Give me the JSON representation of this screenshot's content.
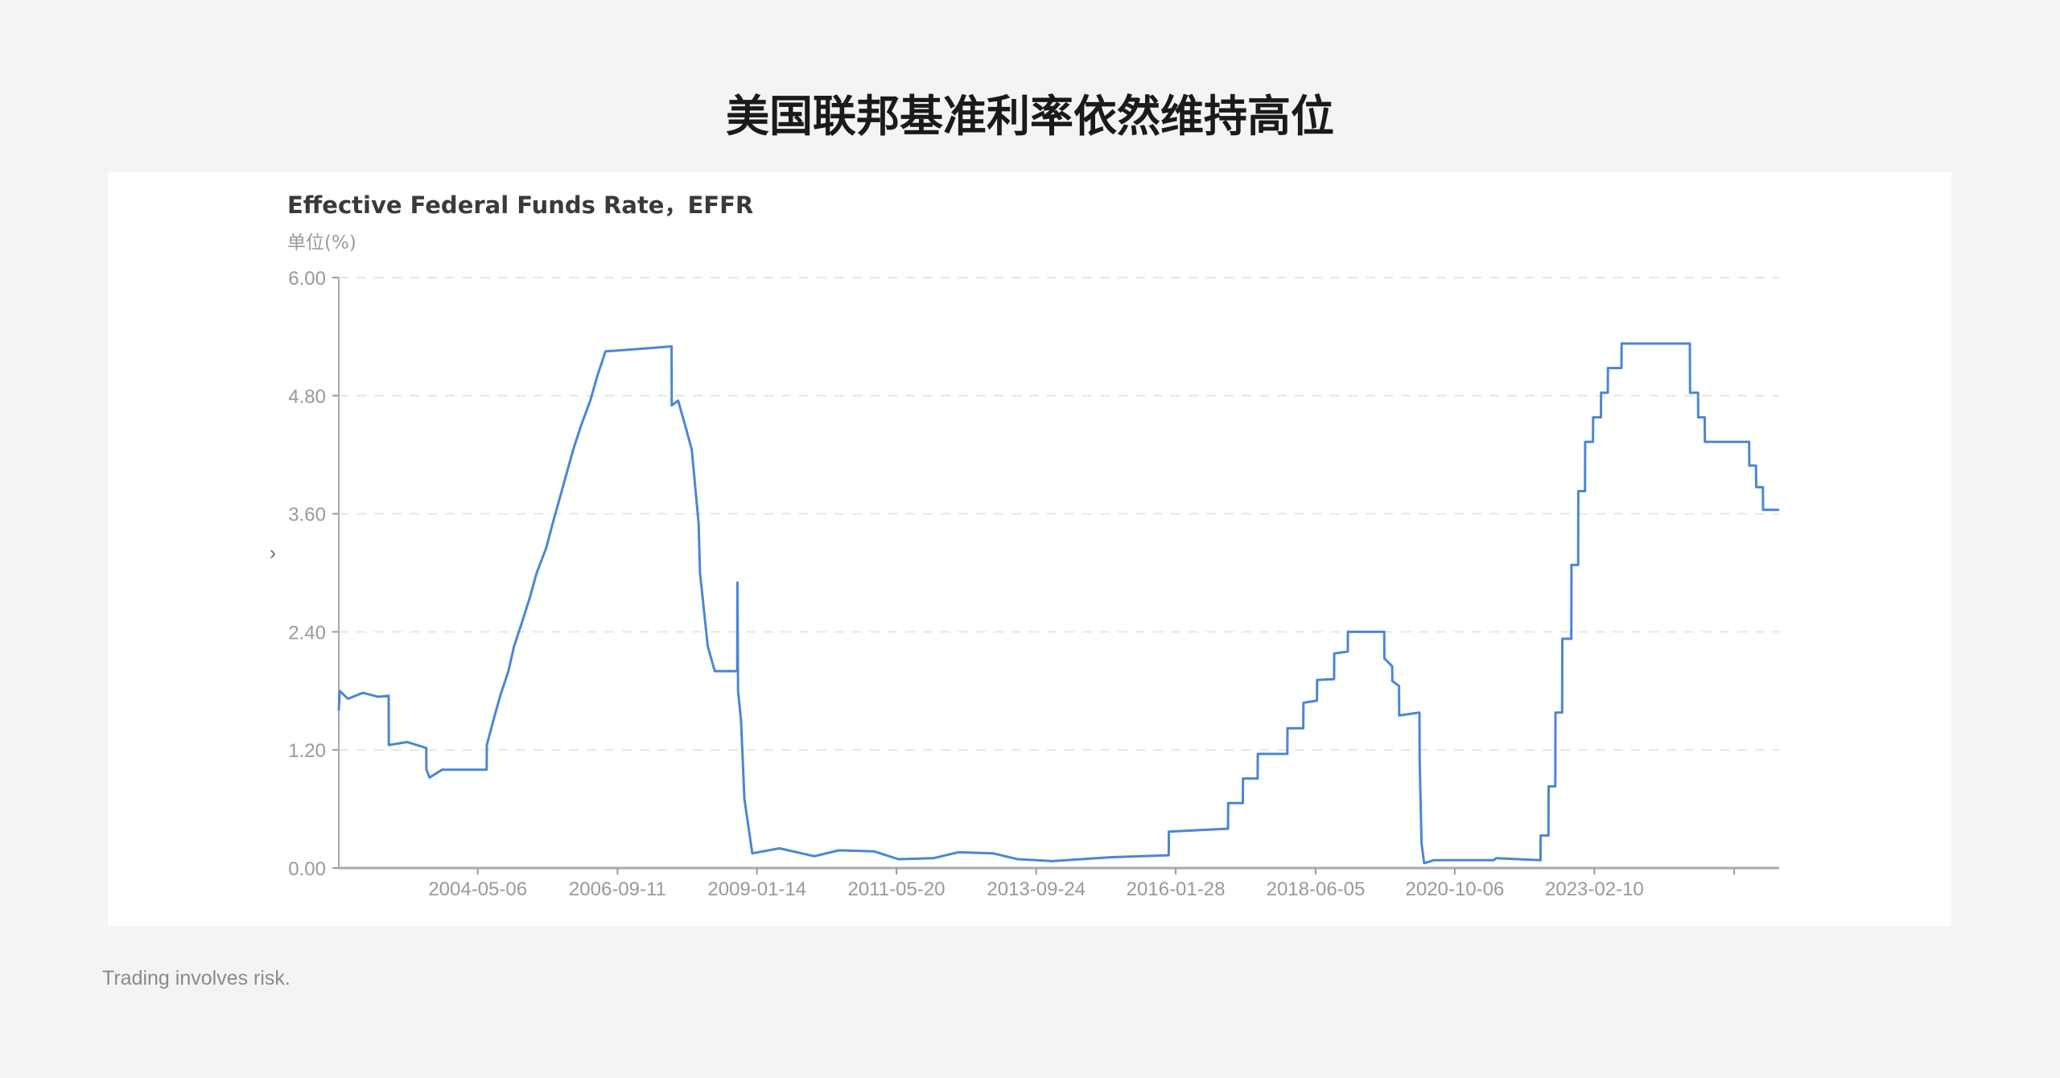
{
  "page": {
    "title": "美国联邦基准利率依然维持高位",
    "footer": "Trading involves risk."
  },
  "chart_data": {
    "type": "line",
    "title": "Effective Federal Funds Rate，EFFR",
    "ylabel": "单位(%)",
    "xlabel": "",
    "ylim": [
      0,
      6
    ],
    "xlim": [
      "2002-01-04",
      "2026-03-20"
    ],
    "yticks": [
      "0.00",
      "1.20",
      "2.40",
      "3.60",
      "4.80",
      "6.00"
    ],
    "xticks": [
      "2004-05-06",
      "2006-09-11",
      "2009-01-14",
      "2011-05-20",
      "2013-09-24",
      "2016-01-28",
      "2018-06-05",
      "2020-10-06",
      "2023-02-10"
    ],
    "grid": "horizontal dashed",
    "line_color": "#4a86d4",
    "series": [
      {
        "points": [
          [
            "2002-01-04",
            1.6
          ],
          [
            "2002-01-10",
            1.8
          ],
          [
            "2002-03-01",
            1.72
          ],
          [
            "2002-06-01",
            1.78
          ],
          [
            "2002-09-01",
            1.74
          ],
          [
            "2002-11-06",
            1.75
          ],
          [
            "2002-11-07",
            1.25
          ],
          [
            "2003-03-01",
            1.28
          ],
          [
            "2003-06-25",
            1.22
          ],
          [
            "2003-06-26",
            1.0
          ],
          [
            "2003-07-15",
            0.92
          ],
          [
            "2003-10-01",
            1.0
          ],
          [
            "2004-03-01",
            1.0
          ],
          [
            "2004-06-30",
            1.0
          ],
          [
            "2004-07-01",
            1.25
          ],
          [
            "2004-08-10",
            1.5
          ],
          [
            "2004-09-21",
            1.75
          ],
          [
            "2004-11-10",
            2.0
          ],
          [
            "2004-12-14",
            2.25
          ],
          [
            "2005-02-02",
            2.5
          ],
          [
            "2005-03-22",
            2.75
          ],
          [
            "2005-05-03",
            3.0
          ],
          [
            "2005-06-30",
            3.25
          ],
          [
            "2005-08-09",
            3.5
          ],
          [
            "2005-09-20",
            3.75
          ],
          [
            "2005-11-01",
            4.0
          ],
          [
            "2005-12-13",
            4.25
          ],
          [
            "2006-01-31",
            4.5
          ],
          [
            "2006-03-28",
            4.75
          ],
          [
            "2006-05-10",
            5.0
          ],
          [
            "2006-06-29",
            5.25
          ],
          [
            "2007-08-09",
            5.3
          ],
          [
            "2007-08-10",
            4.7
          ],
          [
            "2007-09-18",
            4.75
          ],
          [
            "2007-10-31",
            4.5
          ],
          [
            "2007-12-11",
            4.25
          ],
          [
            "2008-01-22",
            3.5
          ],
          [
            "2008-01-30",
            3.0
          ],
          [
            "2008-03-18",
            2.25
          ],
          [
            "2008-04-30",
            2.0
          ],
          [
            "2008-09-15",
            2.0
          ],
          [
            "2008-09-16",
            2.9
          ],
          [
            "2008-09-20",
            1.8
          ],
          [
            "2008-10-08",
            1.5
          ],
          [
            "2008-10-29",
            0.7
          ],
          [
            "2008-12-16",
            0.15
          ],
          [
            "2009-06-01",
            0.2
          ],
          [
            "2010-01-01",
            0.12
          ],
          [
            "2010-06-01",
            0.18
          ],
          [
            "2011-01-01",
            0.17
          ],
          [
            "2011-06-01",
            0.09
          ],
          [
            "2012-01-01",
            0.1
          ],
          [
            "2012-06-01",
            0.16
          ],
          [
            "2013-01-01",
            0.15
          ],
          [
            "2013-06-01",
            0.09
          ],
          [
            "2014-01-01",
            0.07
          ],
          [
            "2015-01-01",
            0.11
          ],
          [
            "2015-12-16",
            0.13
          ],
          [
            "2015-12-17",
            0.37
          ],
          [
            "2016-12-14",
            0.4
          ],
          [
            "2016-12-15",
            0.66
          ],
          [
            "2017-03-15",
            0.66
          ],
          [
            "2017-03-16",
            0.91
          ],
          [
            "2017-06-14",
            0.91
          ],
          [
            "2017-06-15",
            1.16
          ],
          [
            "2017-12-13",
            1.16
          ],
          [
            "2017-12-14",
            1.42
          ],
          [
            "2018-03-21",
            1.42
          ],
          [
            "2018-03-22",
            1.68
          ],
          [
            "2018-06-13",
            1.7
          ],
          [
            "2018-06-14",
            1.91
          ],
          [
            "2018-09-26",
            1.92
          ],
          [
            "2018-09-27",
            2.18
          ],
          [
            "2018-12-19",
            2.2
          ],
          [
            "2018-12-20",
            2.4
          ],
          [
            "2019-07-31",
            2.4
          ],
          [
            "2019-08-01",
            2.13
          ],
          [
            "2019-09-18",
            2.05
          ],
          [
            "2019-09-19",
            1.9
          ],
          [
            "2019-10-30",
            1.85
          ],
          [
            "2019-10-31",
            1.55
          ],
          [
            "2020-03-03",
            1.58
          ],
          [
            "2020-03-04",
            1.1
          ],
          [
            "2020-03-16",
            0.25
          ],
          [
            "2020-04-01",
            0.05
          ],
          [
            "2020-06-01",
            0.08
          ],
          [
            "2021-06-01",
            0.08
          ],
          [
            "2021-06-17",
            0.1
          ],
          [
            "2022-03-16",
            0.08
          ],
          [
            "2022-03-17",
            0.33
          ],
          [
            "2022-05-04",
            0.33
          ],
          [
            "2022-05-05",
            0.83
          ],
          [
            "2022-06-15",
            0.83
          ],
          [
            "2022-06-16",
            1.58
          ],
          [
            "2022-07-27",
            1.58
          ],
          [
            "2022-07-28",
            2.33
          ],
          [
            "2022-09-21",
            2.33
          ],
          [
            "2022-09-22",
            3.08
          ],
          [
            "2022-11-02",
            3.08
          ],
          [
            "2022-11-03",
            3.83
          ],
          [
            "2022-12-14",
            3.83
          ],
          [
            "2022-12-15",
            4.33
          ],
          [
            "2023-02-01",
            4.33
          ],
          [
            "2023-02-02",
            4.58
          ],
          [
            "2023-03-22",
            4.58
          ],
          [
            "2023-03-23",
            4.83
          ],
          [
            "2023-05-03",
            4.83
          ],
          [
            "2023-05-04",
            5.08
          ],
          [
            "2023-07-26",
            5.08
          ],
          [
            "2023-07-27",
            5.33
          ],
          [
            "2024-09-18",
            5.33
          ],
          [
            "2024-09-19",
            4.83
          ],
          [
            "2024-11-07",
            4.83
          ],
          [
            "2024-11-08",
            4.58
          ],
          [
            "2024-12-18",
            4.58
          ],
          [
            "2024-12-19",
            4.33
          ],
          [
            "2025-09-17",
            4.33
          ],
          [
            "2025-09-18",
            4.09
          ],
          [
            "2025-10-29",
            4.09
          ],
          [
            "2025-10-30",
            3.87
          ],
          [
            "2025-12-10",
            3.87
          ],
          [
            "2025-12-11",
            3.64
          ],
          [
            "2026-03-20",
            3.64
          ]
        ]
      }
    ]
  }
}
